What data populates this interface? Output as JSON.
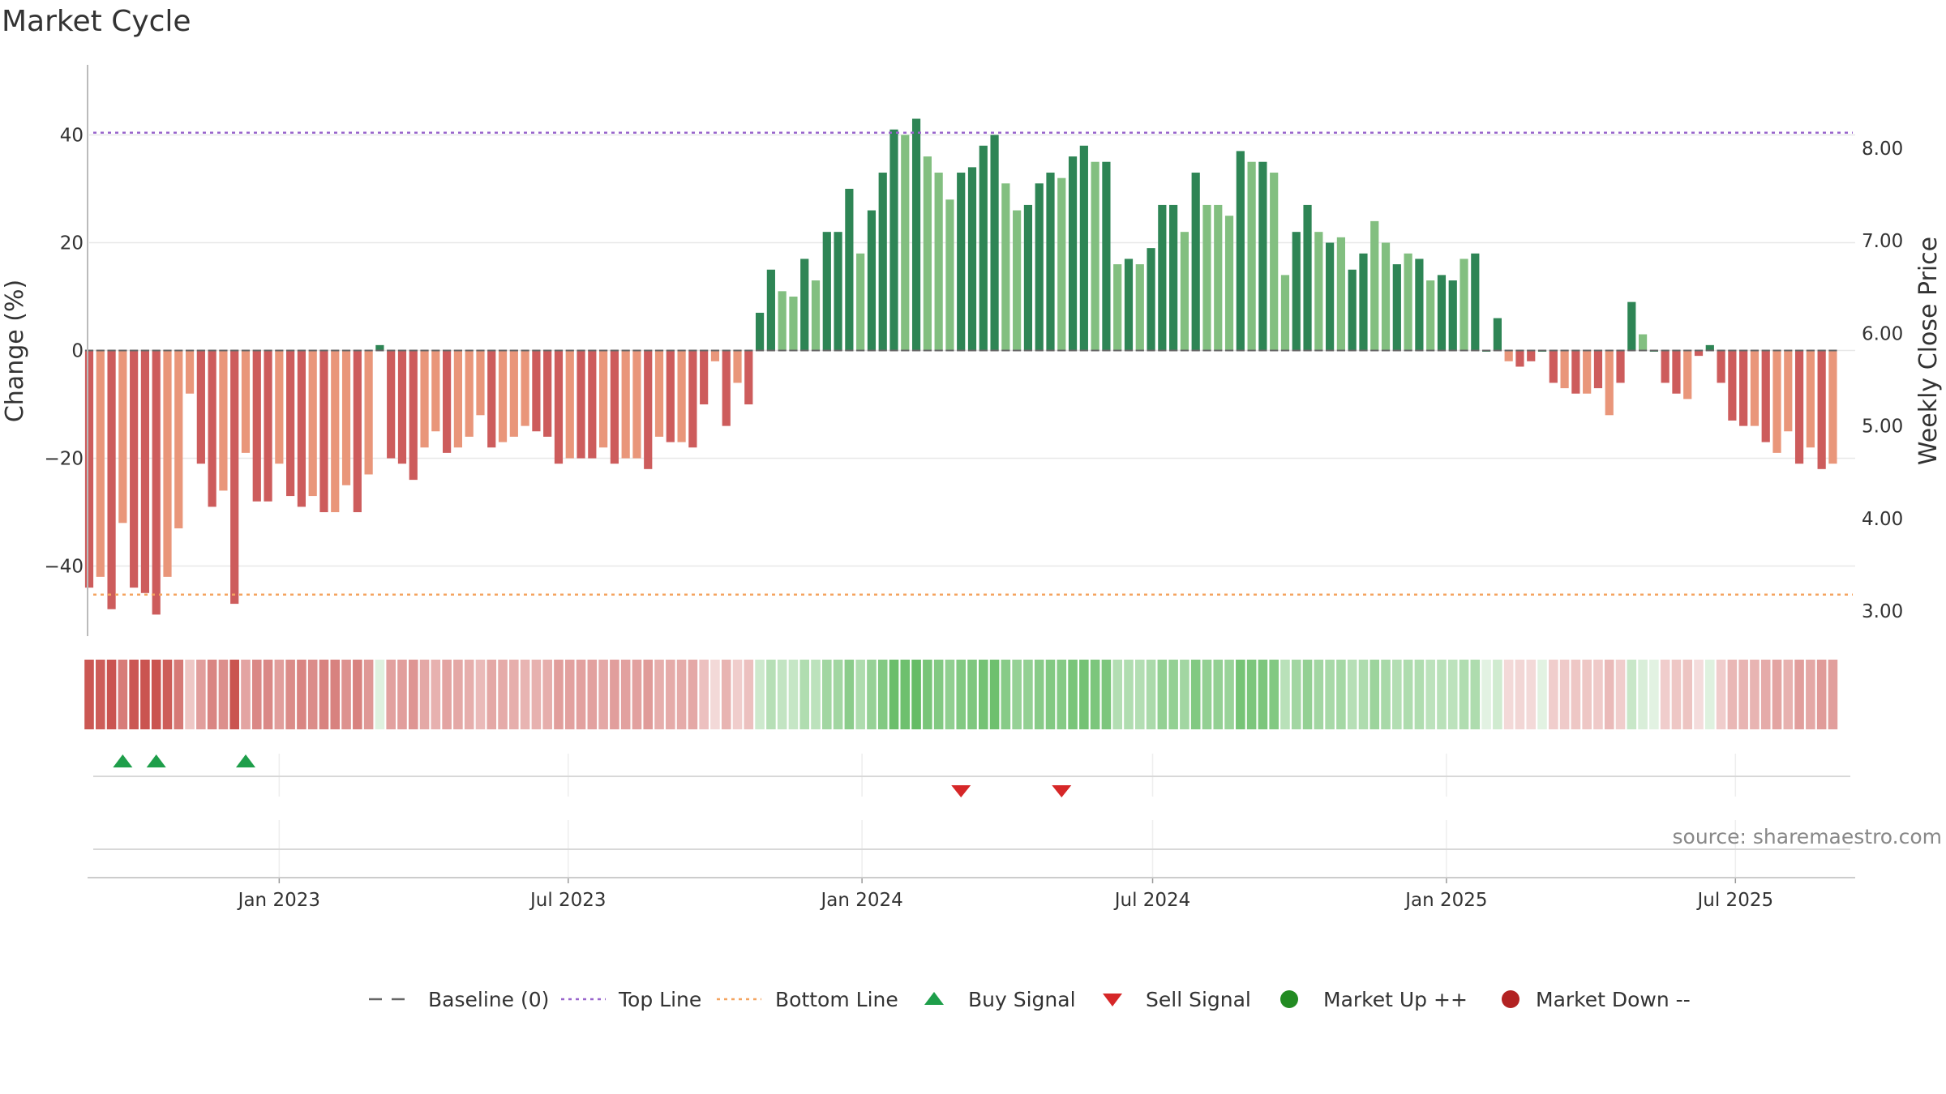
{
  "title": "Market Cycle",
  "source": "source: sharemaestro.com",
  "chart_data": {
    "type": "bar",
    "title": "Market Cycle",
    "ylabel": "Change (%)",
    "y2label": "Weekly Close Price",
    "ylim": [
      -53,
      53
    ],
    "y2lim": [
      2.73,
      8.9
    ],
    "yticks": [
      {
        "value": 40,
        "label": "40"
      },
      {
        "value": 20,
        "label": "20"
      },
      {
        "value": 0,
        "label": "0"
      },
      {
        "value": -20,
        "label": "−20"
      },
      {
        "value": -40,
        "label": "−40"
      }
    ],
    "y2ticks": [
      "3.00",
      "4.00",
      "5.00",
      "6.00",
      "7.00",
      "8.00"
    ],
    "x_range": [
      "2022-09-04",
      "2025-09-14"
    ],
    "xticks": [
      {
        "date": "2023-01-01",
        "label": "Jan 2023"
      },
      {
        "date": "2023-07-01",
        "label": "Jul 2023"
      },
      {
        "date": "2024-01-01",
        "label": "Jan 2024"
      },
      {
        "date": "2024-07-01",
        "label": "Jul 2024"
      },
      {
        "date": "2025-01-01",
        "label": "Jan 2025"
      },
      {
        "date": "2025-07-01",
        "label": "Jul 2025"
      }
    ],
    "start_week": "2022-09-04",
    "values": [
      -44,
      -42,
      -48,
      -32,
      -44,
      -45,
      -49,
      -42,
      -33,
      -8,
      -21,
      -29,
      -26,
      -47,
      -19,
      -28,
      -28,
      -21,
      -27,
      -29,
      -27,
      -30,
      -30,
      -25,
      -30,
      -23,
      1,
      -20,
      -21,
      -24,
      -18,
      -15,
      -19,
      -18,
      -16,
      -12,
      -18,
      -17,
      -16,
      -14,
      -15,
      -16,
      -21,
      -20,
      -20,
      -20,
      -18,
      -21,
      -20,
      -20,
      -22,
      -16,
      -17,
      -17,
      -18,
      -10,
      -2,
      -14,
      -6,
      -10,
      7,
      15,
      11,
      10,
      17,
      13,
      22,
      22,
      30,
      18,
      26,
      33,
      41,
      40,
      43,
      36,
      33,
      28,
      33,
      34,
      38,
      40,
      31,
      26,
      27,
      31,
      33,
      32,
      36,
      38,
      35,
      35,
      16,
      17,
      16,
      19,
      27,
      27,
      22,
      33,
      27,
      27,
      25,
      37,
      35,
      35,
      33,
      14,
      22,
      27,
      22,
      20,
      21,
      15,
      18,
      24,
      20,
      16,
      18,
      17,
      13,
      14,
      13,
      17,
      18,
      0,
      6,
      -2,
      -3,
      -2,
      0,
      -6,
      -7,
      -8,
      -8,
      -7,
      -12,
      -6,
      9,
      3,
      0,
      -6,
      -8,
      -9,
      -1,
      1,
      -6,
      -13,
      -14,
      -14,
      -17,
      -19,
      -15,
      -21,
      -18,
      -22,
      -21
    ],
    "shade": [
      2,
      1,
      2,
      1,
      2,
      2,
      2,
      1,
      1,
      1,
      2,
      2,
      1,
      2,
      1,
      2,
      2,
      1,
      2,
      2,
      1,
      2,
      1,
      1,
      2,
      1,
      2,
      2,
      2,
      2,
      1,
      1,
      2,
      1,
      1,
      1,
      2,
      1,
      1,
      1,
      2,
      2,
      2,
      1,
      2,
      2,
      1,
      2,
      1,
      1,
      2,
      1,
      2,
      1,
      2,
      2,
      1,
      2,
      1,
      2,
      2,
      2,
      1,
      1,
      2,
      1,
      2,
      2,
      2,
      1,
      2,
      2,
      2,
      1,
      2,
      1,
      1,
      1,
      2,
      2,
      2,
      2,
      1,
      1,
      2,
      2,
      2,
      1,
      2,
      2,
      1,
      2,
      1,
      2,
      1,
      2,
      2,
      2,
      1,
      2,
      1,
      1,
      1,
      2,
      1,
      2,
      1,
      1,
      2,
      2,
      1,
      2,
      1,
      2,
      2,
      1,
      1,
      2,
      1,
      2,
      1,
      2,
      2,
      1,
      2,
      2,
      2,
      1,
      2,
      2,
      2,
      2,
      1,
      2,
      1,
      2,
      1,
      2,
      2,
      1,
      2,
      2,
      2,
      1,
      2,
      2,
      2,
      2,
      2,
      1,
      2,
      1,
      1,
      2,
      1,
      2,
      1
    ],
    "top_line": 40.4,
    "bottom_line": -45.3,
    "buy_signals": [
      "2022-09-25",
      "2022-10-16",
      "2022-12-11"
    ],
    "sell_signals": [
      "2024-03-03",
      "2024-05-05"
    ],
    "legend": [
      {
        "key": "baseline",
        "label": "Baseline (0)"
      },
      {
        "key": "top",
        "label": "Top Line"
      },
      {
        "key": "bottom",
        "label": "Bottom Line"
      },
      {
        "key": "buy",
        "label": "Buy Signal"
      },
      {
        "key": "sell",
        "label": "Sell Signal"
      },
      {
        "key": "up",
        "label": "Market Up ++"
      },
      {
        "key": "down",
        "label": "Market Down --"
      }
    ],
    "grid": true,
    "legend_position": "bottom"
  },
  "colors": {
    "pos_dark": "#2e8555",
    "pos_light": "#82bf80",
    "neg_dark": "#cd5c5c",
    "neg_light": "#e9967a",
    "top_line": "#9966cc",
    "bottom_line": "#f4a460",
    "buy": "#1e9e4a",
    "sell": "#d62728",
    "market_up": "#228b22",
    "market_down": "#b22222",
    "baseline": "#666666",
    "grid": "#e8e8e8"
  }
}
